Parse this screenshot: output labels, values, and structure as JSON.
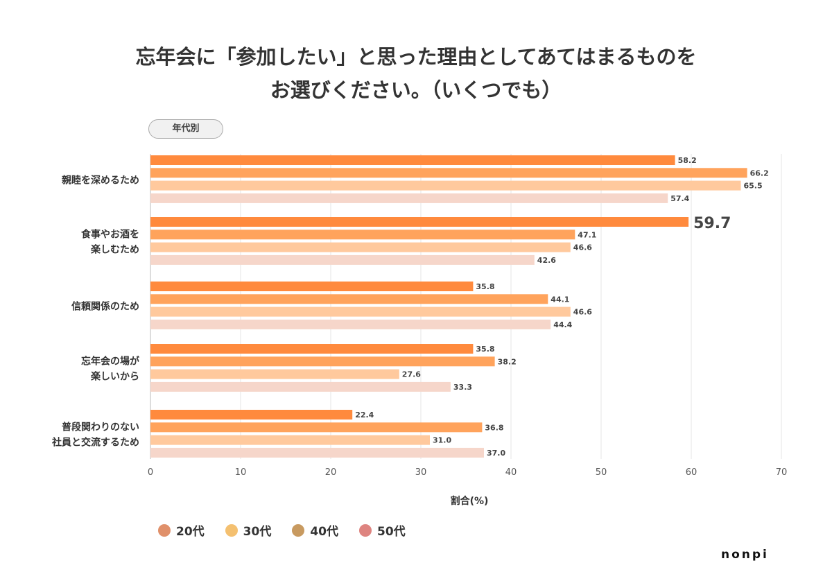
{
  "title_line1": "忘年会に「参加したい」と思った理由としてあてはまるものを",
  "title_line2": "お選びください。（いくつでも）",
  "filter_label": "年代別",
  "logo": "nonpi",
  "chart_data": {
    "type": "bar",
    "orientation": "horizontal",
    "categories": [
      [
        "親睦を深めるため"
      ],
      [
        "食事やお酒を",
        "楽しむため"
      ],
      [
        "信頼関係のため"
      ],
      [
        "忘年会の場が",
        "楽しいから"
      ],
      [
        "普段関わりのない",
        "社員と交流するため"
      ]
    ],
    "series": [
      {
        "name": "20代",
        "values": [
          58.2,
          59.7,
          35.8,
          35.8,
          22.4
        ],
        "bar_color": "#FF8A3D",
        "legend_color": "#E0906A"
      },
      {
        "name": "30代",
        "values": [
          66.2,
          47.1,
          44.1,
          38.2,
          36.8
        ],
        "bar_color": "#FFA35C",
        "legend_color": "#F4C070"
      },
      {
        "name": "40代",
        "values": [
          65.5,
          46.6,
          46.6,
          27.6,
          31.0
        ],
        "bar_color": "#FFC99D",
        "legend_color": "#C89A60"
      },
      {
        "name": "50代",
        "values": [
          57.4,
          42.6,
          44.4,
          33.3,
          37.0
        ],
        "bar_color": "#F6D6CA",
        "legend_color": "#DE8480"
      }
    ],
    "highlight": {
      "category_index": 1,
      "series_index": 0
    },
    "xlabel": "割合(%)",
    "xlim": [
      0,
      70
    ],
    "xticks": [
      0,
      10,
      20,
      30,
      40,
      50,
      60,
      70
    ],
    "grid": true,
    "legend_position": "bottom-left"
  }
}
